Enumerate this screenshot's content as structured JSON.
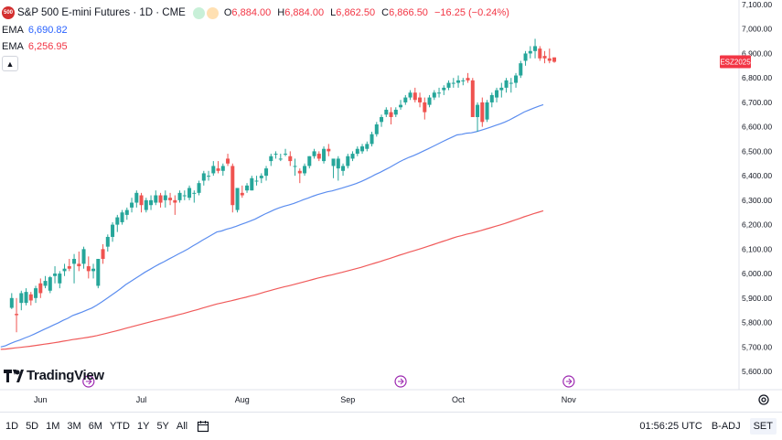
{
  "header": {
    "symbol_badge": "500",
    "title": "S&P 500 E-mini Futures · 1D · CME",
    "ohlc": {
      "o_label": "O",
      "o": "6,884.00",
      "h_label": "H",
      "h": "6,884.00",
      "l_label": "L",
      "l": "6,862.50",
      "c_label": "C",
      "c": "6,866.50",
      "change": "−16.25 (−0.24%)"
    }
  },
  "indicators": [
    {
      "label": "EMA",
      "value": "6,690.82",
      "color": "#2962ff"
    },
    {
      "label": "EMA",
      "value": "6,256.95",
      "color": "#f23645"
    }
  ],
  "price_tag": {
    "label": "ESZ2025",
    "color": "#f23645"
  },
  "logo": {
    "text": "TradingView"
  },
  "bottombar": {
    "timeframes": [
      "1D",
      "5D",
      "1M",
      "3M",
      "6M",
      "YTD",
      "1Y",
      "5Y",
      "All"
    ],
    "time": "01:56:25 UTC",
    "adj": "B-ADJ",
    "session": "SET"
  },
  "colors": {
    "up": "#26a69a",
    "down": "#ef5350",
    "ema_fast": "#5b8def",
    "ema_slow": "#f05a5a"
  },
  "chart_data": {
    "type": "candlestick",
    "y_ticks": [
      "7,100.00",
      "7,000.00",
      "6,900.00",
      "6,800.00",
      "6,700.00",
      "6,600.00",
      "6,500.00",
      "6,400.00",
      "6,300.00",
      "6,200.00",
      "6,100.00",
      "6,000.00",
      "5,900.00",
      "5,800.00",
      "5,700.00",
      "5,600.00"
    ],
    "ylim": [
      5550,
      7105
    ],
    "x_ticks": [
      "Jun",
      "Jul",
      "Aug",
      "Sep",
      "Oct",
      "Nov"
    ],
    "x_tick_index": [
      6,
      27,
      48,
      70,
      93,
      116
    ],
    "event_markers": [
      16,
      81,
      116
    ],
    "ohlc": [
      [
        5860,
        5920,
        5855,
        5900
      ],
      [
        5835,
        5900,
        5760,
        5830
      ],
      [
        5880,
        5930,
        5850,
        5920
      ],
      [
        5880,
        5940,
        5870,
        5925
      ],
      [
        5915,
        5925,
        5870,
        5890
      ],
      [
        5900,
        5950,
        5880,
        5940
      ],
      [
        5960,
        5980,
        5900,
        5920
      ],
      [
        5950,
        5990,
        5940,
        5970
      ],
      [
        5930,
        5990,
        5920,
        5985
      ],
      [
        5990,
        6030,
        5960,
        6000
      ],
      [
        5960,
        6010,
        5940,
        6000
      ],
      [
        6010,
        6040,
        5990,
        6020
      ],
      [
        6030,
        6060,
        6010,
        6020
      ],
      [
        6040,
        6080,
        5960,
        6060
      ],
      [
        6040,
        6090,
        6010,
        6030
      ],
      [
        6040,
        6110,
        6020,
        6100
      ],
      [
        6030,
        6070,
        5980,
        6010
      ],
      [
        6010,
        6040,
        5980,
        6020
      ],
      [
        5950,
        6060,
        5940,
        6060
      ],
      [
        6100,
        6120,
        6040,
        6060
      ],
      [
        6110,
        6160,
        6090,
        6150
      ],
      [
        6150,
        6210,
        6130,
        6200
      ],
      [
        6200,
        6240,
        6170,
        6230
      ],
      [
        6210,
        6260,
        6200,
        6250
      ],
      [
        6240,
        6270,
        6220,
        6260
      ],
      [
        6270,
        6310,
        6250,
        6290
      ],
      [
        6290,
        6340,
        6270,
        6330
      ],
      [
        6320,
        6330,
        6250,
        6280
      ],
      [
        6260,
        6310,
        6250,
        6300
      ],
      [
        6280,
        6320,
        6260,
        6300
      ],
      [
        6290,
        6340,
        6280,
        6320
      ],
      [
        6320,
        6330,
        6270,
        6290
      ],
      [
        6300,
        6340,
        6270,
        6320
      ],
      [
        6310,
        6330,
        6280,
        6300
      ],
      [
        6300,
        6320,
        6240,
        6290
      ],
      [
        6300,
        6340,
        6290,
        6330
      ],
      [
        6320,
        6340,
        6300,
        6320
      ],
      [
        6310,
        6360,
        6300,
        6350
      ],
      [
        6330,
        6340,
        6290,
        6330
      ],
      [
        6330,
        6380,
        6320,
        6370
      ],
      [
        6380,
        6420,
        6360,
        6410
      ],
      [
        6400,
        6420,
        6380,
        6400
      ],
      [
        6410,
        6460,
        6400,
        6440
      ],
      [
        6430,
        6460,
        6410,
        6420
      ],
      [
        6420,
        6450,
        6400,
        6440
      ],
      [
        6470,
        6490,
        6440,
        6450
      ],
      [
        6440,
        6450,
        6250,
        6280
      ],
      [
        6260,
        6350,
        6250,
        6350
      ],
      [
        6330,
        6360,
        6310,
        6320
      ],
      [
        6340,
        6370,
        6330,
        6360
      ],
      [
        6340,
        6400,
        6340,
        6390
      ],
      [
        6380,
        6400,
        6360,
        6380
      ],
      [
        6390,
        6410,
        6370,
        6400
      ],
      [
        6400,
        6440,
        6380,
        6430
      ],
      [
        6460,
        6490,
        6440,
        6480
      ],
      [
        6490,
        6500,
        6470,
        6490
      ],
      [
        6470,
        6490,
        6460,
        6470
      ],
      [
        6490,
        6510,
        6480,
        6490
      ],
      [
        6480,
        6500,
        6440,
        6460
      ],
      [
        6440,
        6470,
        6400,
        6440
      ],
      [
        6420,
        6430,
        6370,
        6410
      ],
      [
        6410,
        6450,
        6400,
        6440
      ],
      [
        6440,
        6480,
        6430,
        6480
      ],
      [
        6480,
        6510,
        6470,
        6500
      ],
      [
        6490,
        6500,
        6460,
        6470
      ],
      [
        6460,
        6520,
        6450,
        6510
      ],
      [
        6510,
        6530,
        6480,
        6500
      ],
      [
        6440,
        6460,
        6390,
        6470
      ],
      [
        6430,
        6480,
        6380,
        6470
      ],
      [
        6420,
        6450,
        6400,
        6440
      ],
      [
        6440,
        6490,
        6430,
        6480
      ],
      [
        6470,
        6500,
        6460,
        6490
      ],
      [
        6490,
        6520,
        6480,
        6510
      ],
      [
        6500,
        6530,
        6490,
        6520
      ],
      [
        6510,
        6540,
        6500,
        6530
      ],
      [
        6530,
        6580,
        6520,
        6570
      ],
      [
        6570,
        6620,
        6560,
        6610
      ],
      [
        6620,
        6650,
        6600,
        6640
      ],
      [
        6650,
        6680,
        6640,
        6670
      ],
      [
        6660,
        6680,
        6610,
        6640
      ],
      [
        6650,
        6680,
        6640,
        6670
      ],
      [
        6680,
        6710,
        6670,
        6690
      ],
      [
        6700,
        6730,
        6690,
        6720
      ],
      [
        6720,
        6750,
        6710,
        6740
      ],
      [
        6740,
        6760,
        6700,
        6710
      ],
      [
        6720,
        6740,
        6680,
        6700
      ],
      [
        6700,
        6720,
        6630,
        6660
      ],
      [
        6690,
        6730,
        6680,
        6720
      ],
      [
        6720,
        6750,
        6710,
        6740
      ],
      [
        6740,
        6760,
        6720,
        6740
      ],
      [
        6750,
        6770,
        6730,
        6760
      ],
      [
        6760,
        6790,
        6750,
        6780
      ],
      [
        6780,
        6800,
        6760,
        6780
      ],
      [
        6780,
        6810,
        6760,
        6790
      ],
      [
        6790,
        6800,
        6770,
        6790
      ],
      [
        6800,
        6820,
        6780,
        6790
      ],
      [
        6790,
        6800,
        6640,
        6640
      ],
      [
        6640,
        6700,
        6580,
        6690
      ],
      [
        6700,
        6720,
        6600,
        6620
      ],
      [
        6630,
        6710,
        6620,
        6700
      ],
      [
        6700,
        6740,
        6680,
        6730
      ],
      [
        6720,
        6760,
        6700,
        6750
      ],
      [
        6750,
        6780,
        6720,
        6760
      ],
      [
        6760,
        6800,
        6740,
        6790
      ],
      [
        6780,
        6800,
        6740,
        6780
      ],
      [
        6780,
        6820,
        6760,
        6810
      ],
      [
        6810,
        6870,
        6800,
        6860
      ],
      [
        6870,
        6910,
        6850,
        6900
      ],
      [
        6900,
        6930,
        6880,
        6910
      ],
      [
        6910,
        6960,
        6880,
        6930
      ],
      [
        6920,
        6930,
        6870,
        6880
      ],
      [
        6890,
        6910,
        6860,
        6880
      ],
      [
        6880,
        6920,
        6860,
        6870
      ],
      [
        6884,
        6884,
        6862,
        6866
      ]
    ],
    "ema_fast": {
      "label": "EMA",
      "start": 5700,
      "end": 6690.82
    },
    "ema_slow": {
      "label": "EMA",
      "start": 5690,
      "end": 6256.95
    }
  }
}
